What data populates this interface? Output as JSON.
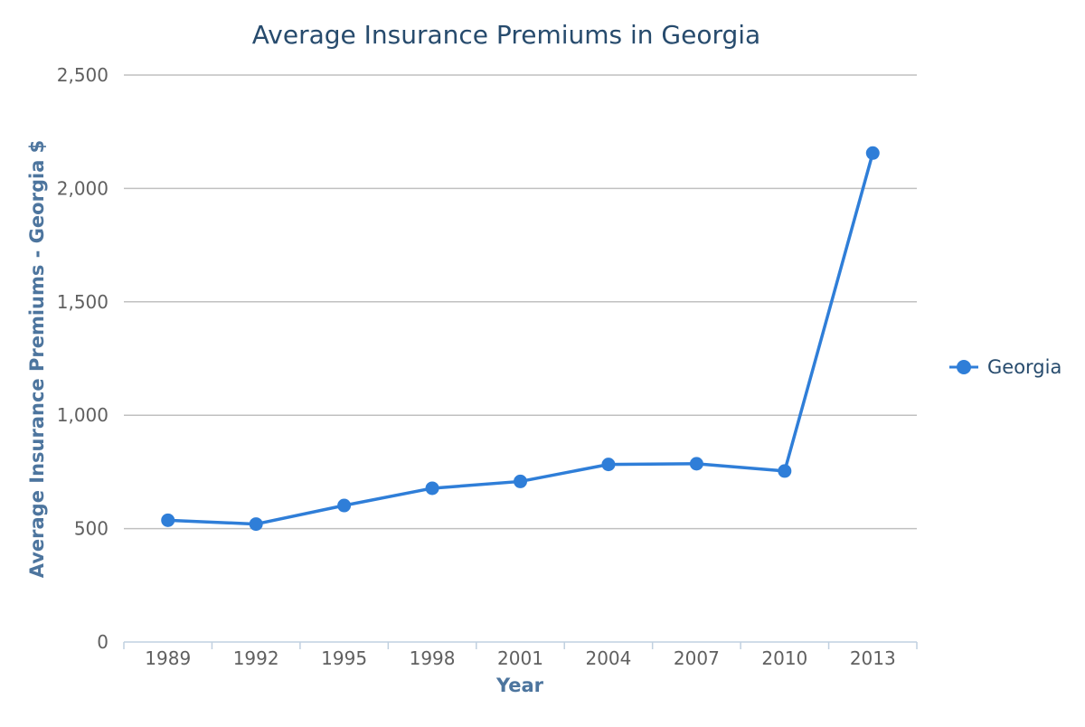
{
  "chart_data": {
    "type": "line",
    "title": "Average Insurance Premiums in Georgia",
    "xlabel": "Year",
    "ylabel": "Average Insurance Premiums - Georgia $",
    "categories": [
      "1989",
      "1992",
      "1995",
      "1998",
      "2001",
      "2004",
      "2007",
      "2010",
      "2013"
    ],
    "series": [
      {
        "name": "Georgia",
        "color": "#2f7ed8",
        "values": [
          537,
          520,
          602,
          678,
          708,
          783,
          786,
          754,
          2156
        ]
      }
    ],
    "ylim": [
      0,
      2500
    ],
    "yticks": [
      0,
      500,
      1000,
      1500,
      2000,
      2500
    ],
    "ytick_labels": [
      "0",
      "500",
      "1,000",
      "1,500",
      "2,000",
      "2,500"
    ],
    "grid": true,
    "legend_position": "right"
  }
}
